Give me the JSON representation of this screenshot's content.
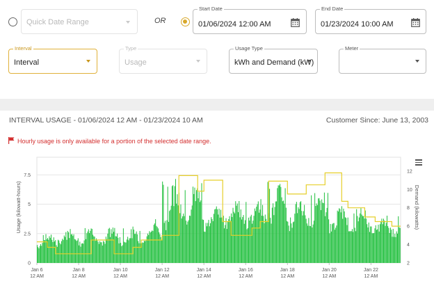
{
  "filters": {
    "or_label": "OR",
    "quick_range": {
      "placeholder": "Quick Date Range",
      "selected": false
    },
    "date_range": {
      "selected": true
    },
    "start_date": {
      "label": "Start Date",
      "value": "01/06/2024 12:00 AM"
    },
    "end_date": {
      "label": "End Date",
      "value": "01/23/2024 10:00 AM"
    },
    "interval": {
      "label": "Interval",
      "value": "Interval"
    },
    "type": {
      "label": "Type",
      "value": "Usage"
    },
    "usage_type": {
      "label": "Usage Type",
      "value": "kWh and Demand (kW)"
    },
    "meter": {
      "label": "Meter",
      "value": ""
    }
  },
  "section": {
    "title": "INTERVAL USAGE - 01/06/2024 12 AM - 01/23/2024 10 AM",
    "customer_since": "Customer Since: June 13, 2003"
  },
  "warning": {
    "text": "Hourly usage is only available for a portion of the selected date range."
  },
  "colors": {
    "accent": "#d8a82a",
    "usage_bar": "#1fbf3c",
    "demand_line": "#e6cf2a",
    "warning": "#d32f2f"
  },
  "chart_data": {
    "type": "bar",
    "ylabel": "Usage (kilowatt-hours)",
    "y2label": "Demand (kilowatts)",
    "ylim": [
      0,
      9
    ],
    "y2lim": [
      2,
      13.5
    ],
    "y_ticks": [
      "0",
      "2.5",
      "5",
      "7.5"
    ],
    "y2_ticks": [
      "2",
      "4",
      "6",
      "8",
      "10",
      "12"
    ],
    "x_ticks": [
      {
        "line1": "Jan 6",
        "line2": "12 AM",
        "day": 0
      },
      {
        "line1": "Jan 8",
        "line2": "12 AM",
        "day": 2
      },
      {
        "line1": "Jan 10",
        "line2": "12 AM",
        "day": 4
      },
      {
        "line1": "Jan 12",
        "line2": "12 AM",
        "day": 6
      },
      {
        "line1": "Jan 14",
        "line2": "12 AM",
        "day": 8
      },
      {
        "line1": "Jan 16",
        "line2": "12 AM",
        "day": 10
      },
      {
        "line1": "Jan 18",
        "line2": "12 AM",
        "day": 12
      },
      {
        "line1": "Jan 20",
        "line2": "12 AM",
        "day": 14
      },
      {
        "line1": "Jan 22",
        "line2": "12 AM",
        "day": 16
      }
    ],
    "x_range_days": [
      0,
      17.42
    ],
    "series": [
      {
        "name": "Usage",
        "kind": "bar",
        "daily_base": [
          1.6,
          1.8,
          1.7,
          1.9,
          1.8,
          2.0,
          3.4,
          3.9,
          3.3,
          3.6,
          3.5,
          4.0,
          3.6,
          3.7,
          3.2,
          3.0,
          2.8,
          2.7
        ],
        "daily_peak": [
          2.6,
          3.1,
          3.0,
          3.1,
          3.0,
          3.8,
          7.2,
          6.8,
          5.3,
          5.4,
          5.5,
          7.0,
          5.5,
          6.2,
          5.0,
          4.6,
          4.2,
          4.0
        ]
      },
      {
        "name": "Demand",
        "kind": "step",
        "steps": [
          {
            "x": 0,
            "y": 4.3
          },
          {
            "x": 0.5,
            "y": 3.7
          },
          {
            "x": 0.9,
            "y": 3.0
          },
          {
            "x": 2.6,
            "y": 4.5
          },
          {
            "x": 3.7,
            "y": 3.0
          },
          {
            "x": 4.6,
            "y": 3.7
          },
          {
            "x": 5.0,
            "y": 4.5
          },
          {
            "x": 6.0,
            "y": 5.0
          },
          {
            "x": 6.8,
            "y": 11.5
          },
          {
            "x": 7.7,
            "y": 9.8
          },
          {
            "x": 8.0,
            "y": 11.0
          },
          {
            "x": 8.9,
            "y": 6.5
          },
          {
            "x": 9.3,
            "y": 5.0
          },
          {
            "x": 10.3,
            "y": 5.8
          },
          {
            "x": 10.7,
            "y": 6.5
          },
          {
            "x": 11.1,
            "y": 10.9
          },
          {
            "x": 12.0,
            "y": 9.5
          },
          {
            "x": 12.9,
            "y": 10.5
          },
          {
            "x": 13.8,
            "y": 11.8
          },
          {
            "x": 14.6,
            "y": 8.7
          },
          {
            "x": 14.9,
            "y": 8.0
          },
          {
            "x": 15.7,
            "y": 7.0
          },
          {
            "x": 16.2,
            "y": 6.5
          },
          {
            "x": 17.0,
            "y": 6.0
          },
          {
            "x": 17.42,
            "y": 6.0
          }
        ]
      }
    ]
  }
}
